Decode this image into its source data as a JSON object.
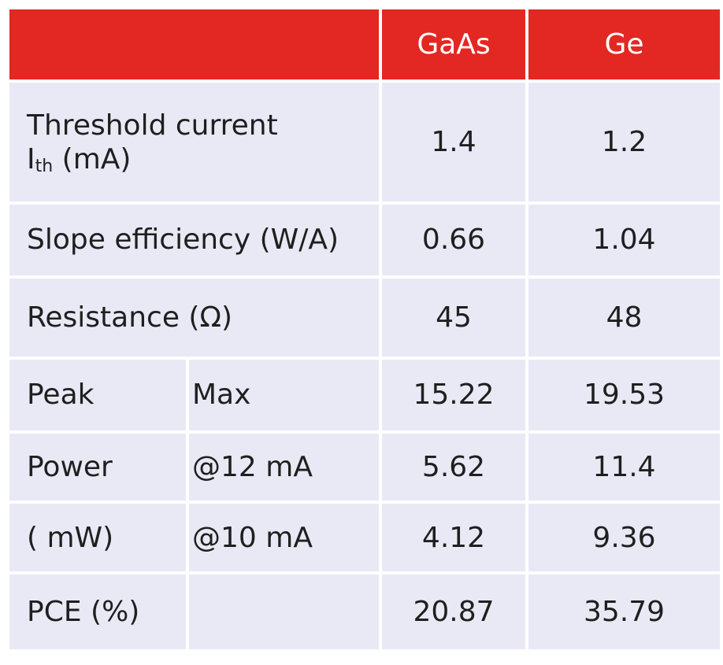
{
  "table": {
    "headers": {
      "col_gaas": "GaAs",
      "col_ge": "Ge"
    },
    "rows": {
      "threshold": {
        "line1": "Threshold current",
        "sym": "I",
        "sub": "th",
        "unit": " (mA)",
        "gaas": "1.4",
        "ge": "1.2"
      },
      "slope": {
        "label": "Slope efficiency (W/A)",
        "gaas": "0.66",
        "ge": "1.04"
      },
      "resistance": {
        "label": "Resistance (Ω)",
        "gaas": "45",
        "ge": "48"
      },
      "peak_max": {
        "label": "Peak",
        "sublabel": "Max",
        "gaas": "15.22",
        "ge": "19.53"
      },
      "power_12": {
        "label": "Power",
        "sublabel": "@12 mA",
        "gaas": "5.62",
        "ge": "11.4"
      },
      "power_10": {
        "label": "( mW)",
        "sublabel": "@10 mA",
        "gaas": "4.12",
        "ge": "9.36"
      },
      "pce": {
        "label": "PCE (%)",
        "gaas": "20.87",
        "ge": "35.79"
      }
    },
    "colors": {
      "header": "#e32722",
      "cell": "#e8e9f5"
    }
  }
}
